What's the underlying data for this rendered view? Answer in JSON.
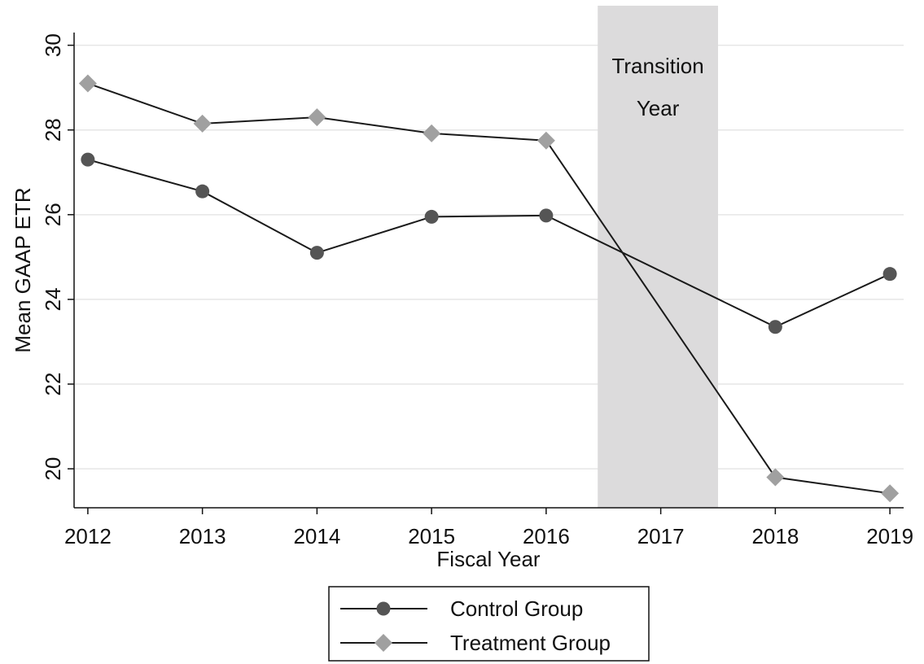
{
  "chart_data": {
    "type": "line",
    "x_label": "Fiscal Year",
    "y_label": "Mean GAAP ETR",
    "annotation": [
      "Transition",
      "Year"
    ],
    "shade": [
      2016.45,
      2017.5
    ],
    "shade_color": "#dcdbdc",
    "x": [
      2012,
      2013,
      2014,
      2015,
      2016,
      2018,
      2019
    ],
    "series": [
      {
        "name": "Control Group",
        "color": "#555555",
        "line_color": "#1a1a1a",
        "marker": "circle",
        "values": [
          27.3,
          26.55,
          25.1,
          25.95,
          25.98,
          23.35,
          24.6
        ]
      },
      {
        "name": "Treatment Group",
        "color": "#a0a0a0",
        "line_color": "#1a1a1a",
        "marker": "diamond",
        "values": [
          29.1,
          28.15,
          28.3,
          27.92,
          27.75,
          19.8,
          19.42
        ]
      }
    ],
    "xlim": [
      2011.88,
      2019.12
    ],
    "xticks": [
      2012,
      2013,
      2014,
      2015,
      2016,
      2017,
      2018,
      2019
    ],
    "ylim": [
      19.08,
      30.3
    ],
    "yticks": [
      20,
      22,
      24,
      26,
      28,
      30
    ],
    "grid": true,
    "legend": "bottom"
  }
}
